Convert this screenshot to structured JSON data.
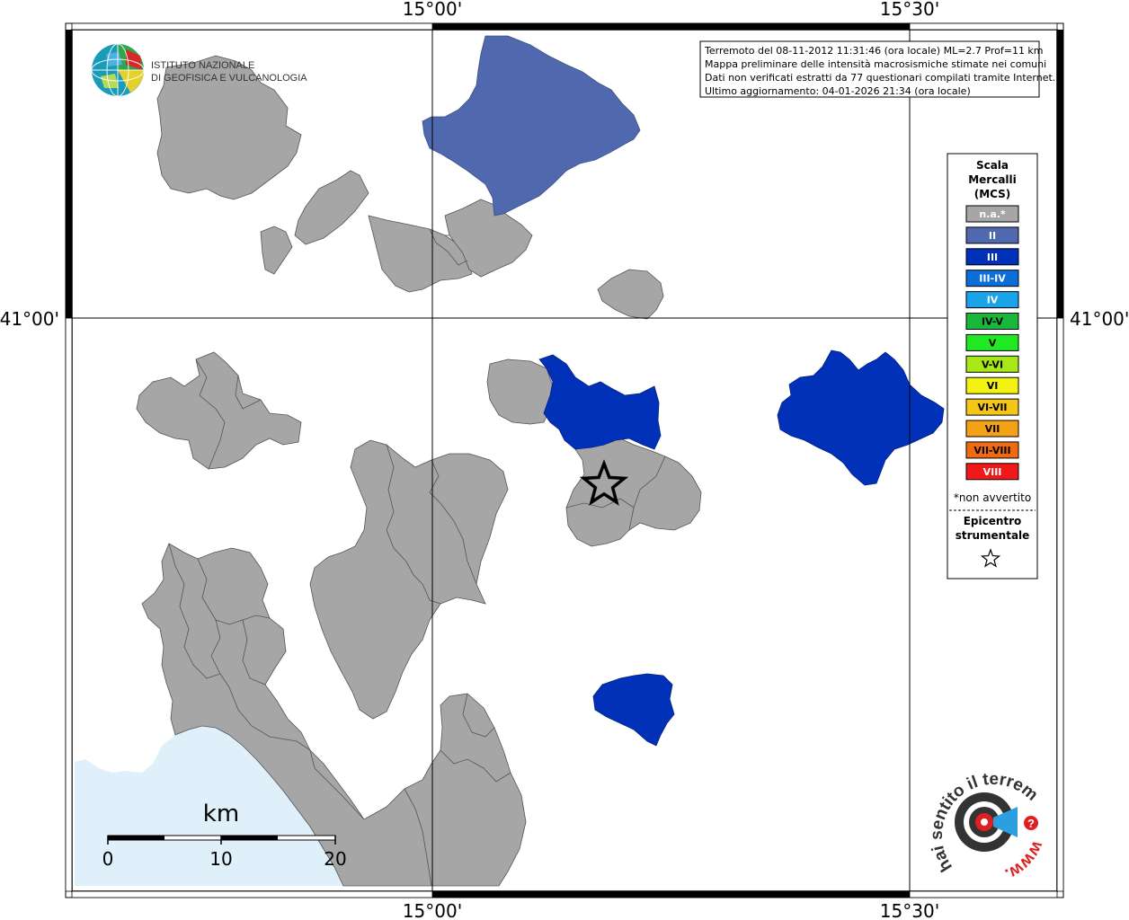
{
  "coords": {
    "lon_left": "15°00'",
    "lon_right": "15°30'",
    "lat": "41°00'"
  },
  "info_box": {
    "line1": "Terremoto del 08-11-2012 11:31:46 (ora locale) ML=2.7 Prof=11 km",
    "line2": "Mappa preliminare delle intensità macrosismiche stimate nei comuni",
    "line3": "Dati non verificati estratti da 77 questionari compilati tramite Internet.",
    "line4": "Ultimo aggiornamento: 04-01-2026 21:34 (ora locale)"
  },
  "logo_ingv": {
    "line1": "ISTITUTO NAZIONALE",
    "line2": "DI GEOFISICA E VULCANOLOGIA"
  },
  "legend": {
    "title1": "Scala",
    "title2": "Mercalli",
    "title3": "(MCS)",
    "items": [
      {
        "label": "n.a.*",
        "color": "#a6a6a6"
      },
      {
        "label": "II",
        "color": "#5068ad"
      },
      {
        "label": "III",
        "color": "#0031b8"
      },
      {
        "label": "III-IV",
        "color": "#0a6fd8"
      },
      {
        "label": "IV",
        "color": "#1aa3e8"
      },
      {
        "label": "IV-V",
        "color": "#18b83a"
      },
      {
        "label": "V",
        "color": "#22e822"
      },
      {
        "label": "V-VI",
        "color": "#a8e817"
      },
      {
        "label": "VI",
        "color": "#f2f213"
      },
      {
        "label": "VI-VII",
        "color": "#f5c518"
      },
      {
        "label": "VII",
        "color": "#f5a218"
      },
      {
        "label": "VII-VIII",
        "color": "#f06a12"
      },
      {
        "label": "VIII",
        "color": "#f01818"
      }
    ],
    "note": "*non avvertito",
    "epi1": "Epicentro",
    "epi2": "strumentale"
  },
  "scale": {
    "unit": "km",
    "ticks": [
      "0",
      "10",
      "20"
    ]
  },
  "hs_logo": {
    "main": "hai sentito il terremoto.it",
    "www": "www.",
    "q": "?"
  },
  "colors": {
    "na": "#a6a6a6",
    "intensity_II": "#5068ad",
    "intensity_III": "#0031b8",
    "sea": "#dff0fb"
  }
}
